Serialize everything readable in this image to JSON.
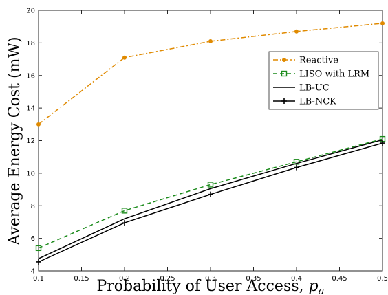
{
  "chart_data": {
    "type": "line",
    "title": "",
    "xlabel": "Probability of User Access, ",
    "xlabel_symbol": "p",
    "xlabel_subscript": "a",
    "ylabel": "Average Energy Cost (mW)",
    "xlim": [
      0.1,
      0.5
    ],
    "ylim": [
      4,
      20
    ],
    "x_ticks": [
      "0.1",
      "0.15",
      "0.2",
      "0.25",
      "0.3",
      "0.35",
      "0.4",
      "0.45",
      "0.5"
    ],
    "y_ticks": [
      "4",
      "6",
      "8",
      "10",
      "12",
      "14",
      "16",
      "18",
      "20"
    ],
    "grid": false,
    "legend_position": "right, upper-middle",
    "x": [
      0.1,
      0.2,
      0.3,
      0.4,
      0.5
    ],
    "series": [
      {
        "name": "Reactive",
        "values": [
          13.0,
          17.1,
          18.1,
          18.7,
          19.2
        ],
        "color": "#e08a00",
        "dash": "dashdot",
        "marker": "dot"
      },
      {
        "name": "LISO with LRM",
        "values": [
          5.4,
          7.7,
          9.3,
          10.7,
          12.1
        ],
        "color": "#1a8a1a",
        "dash": "dashed",
        "marker": "square"
      },
      {
        "name": "LB-UC",
        "values": [
          4.75,
          7.2,
          9.05,
          10.6,
          12.05
        ],
        "color": "#000000",
        "dash": "solid",
        "marker": "none"
      },
      {
        "name": "LB-NCK",
        "values": [
          4.55,
          6.95,
          8.7,
          10.35,
          11.85
        ],
        "color": "#000000",
        "dash": "solid",
        "marker": "plus"
      }
    ]
  }
}
